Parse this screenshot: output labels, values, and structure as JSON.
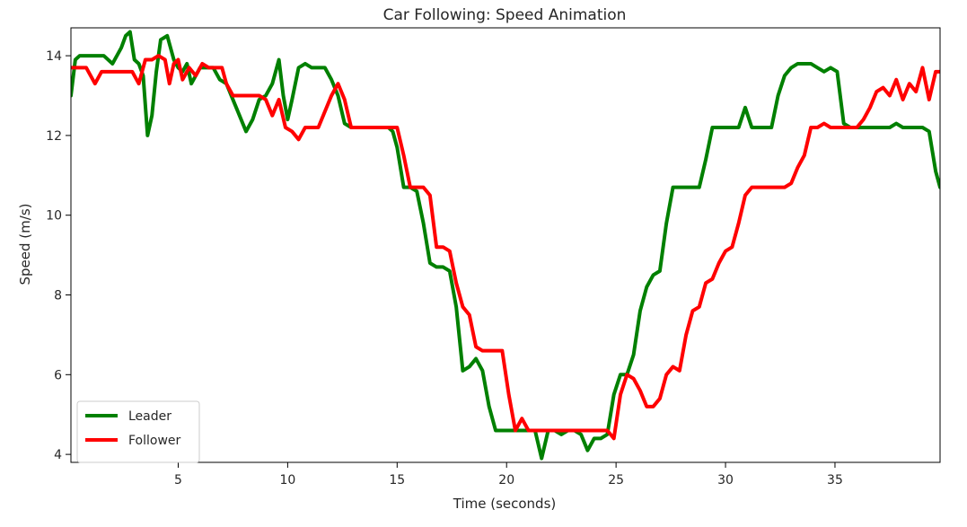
{
  "chart_data": {
    "type": "line",
    "title": "Car Following: Speed Animation",
    "xlabel": "Time (seconds)",
    "ylabel": "Speed (m/s)",
    "xlim": [
      0.1,
      39.8
    ],
    "ylim": [
      3.8,
      14.7
    ],
    "xticks": [
      5,
      10,
      15,
      20,
      25,
      30,
      35
    ],
    "yticks": [
      4,
      6,
      8,
      10,
      12,
      14
    ],
    "grid": false,
    "legend_position": "lower-left",
    "series": [
      {
        "name": "Leader",
        "color": "#008000",
        "x": [
          0.1,
          0.3,
          0.5,
          0.8,
          1.2,
          1.6,
          2.0,
          2.2,
          2.4,
          2.6,
          2.8,
          3.0,
          3.2,
          3.4,
          3.6,
          3.8,
          4.0,
          4.2,
          4.5,
          4.8,
          5.0,
          5.2,
          5.4,
          5.6,
          5.8,
          6.0,
          6.3,
          6.6,
          6.9,
          7.2,
          7.5,
          7.8,
          8.1,
          8.4,
          8.7,
          9.0,
          9.3,
          9.6,
          9.8,
          10.0,
          10.2,
          10.5,
          10.8,
          11.1,
          11.4,
          11.7,
          12.0,
          12.3,
          12.6,
          12.9,
          13.2,
          13.5,
          13.8,
          14.1,
          14.4,
          14.6,
          14.8,
          15.0,
          15.3,
          15.6,
          15.9,
          16.2,
          16.5,
          16.8,
          17.1,
          17.4,
          17.7,
          18.0,
          18.3,
          18.6,
          18.9,
          19.2,
          19.5,
          19.8,
          20.1,
          20.4,
          20.7,
          21.0,
          21.3,
          21.6,
          21.9,
          22.2,
          22.5,
          22.8,
          23.1,
          23.4,
          23.7,
          24.0,
          24.3,
          24.6,
          24.9,
          25.2,
          25.5,
          25.8,
          26.1,
          26.4,
          26.7,
          27.0,
          27.3,
          27.6,
          27.9,
          28.2,
          28.5,
          28.8,
          29.1,
          29.4,
          29.7,
          30.0,
          30.3,
          30.6,
          30.9,
          31.2,
          31.5,
          31.8,
          32.1,
          32.4,
          32.7,
          33.0,
          33.3,
          33.6,
          33.9,
          34.2,
          34.5,
          34.8,
          35.1,
          35.4,
          35.7,
          36.0,
          36.3,
          36.6,
          36.9,
          37.2,
          37.5,
          37.8,
          38.1,
          38.4,
          38.7,
          39.0,
          39.3,
          39.6,
          39.8
        ],
        "y": [
          13.0,
          13.9,
          14.0,
          14.0,
          14.0,
          14.0,
          13.8,
          14.0,
          14.2,
          14.5,
          14.6,
          13.9,
          13.8,
          13.5,
          12.0,
          12.5,
          13.6,
          14.4,
          14.5,
          13.9,
          13.7,
          13.6,
          13.8,
          13.3,
          13.5,
          13.7,
          13.7,
          13.7,
          13.4,
          13.3,
          12.9,
          12.5,
          12.1,
          12.4,
          12.9,
          13.0,
          13.3,
          13.9,
          13.0,
          12.4,
          12.9,
          13.7,
          13.8,
          13.7,
          13.7,
          13.7,
          13.4,
          13.0,
          12.3,
          12.2,
          12.2,
          12.2,
          12.2,
          12.2,
          12.2,
          12.2,
          12.1,
          11.7,
          10.7,
          10.7,
          10.6,
          9.8,
          8.8,
          8.7,
          8.7,
          8.6,
          7.7,
          6.1,
          6.2,
          6.4,
          6.1,
          5.2,
          4.6,
          4.6,
          4.6,
          4.6,
          4.6,
          4.6,
          4.6,
          3.9,
          4.6,
          4.6,
          4.5,
          4.6,
          4.6,
          4.5,
          4.1,
          4.4,
          4.4,
          4.5,
          5.5,
          6.0,
          6.0,
          6.5,
          7.6,
          8.2,
          8.5,
          8.6,
          9.8,
          10.7,
          10.7,
          10.7,
          10.7,
          10.7,
          11.4,
          12.2,
          12.2,
          12.2,
          12.2,
          12.2,
          12.7,
          12.2,
          12.2,
          12.2,
          12.2,
          13.0,
          13.5,
          13.7,
          13.8,
          13.8,
          13.8,
          13.7,
          13.6,
          13.7,
          13.6,
          12.3,
          12.2,
          12.2,
          12.2,
          12.2,
          12.2,
          12.2,
          12.2,
          12.3,
          12.2,
          12.2,
          12.2,
          12.2,
          12.1,
          11.1,
          10.7
        ]
      },
      {
        "name": "Follower",
        "color": "#ff0000",
        "x": [
          0.1,
          0.4,
          0.8,
          1.2,
          1.5,
          1.8,
          2.0,
          2.3,
          2.6,
          2.9,
          3.2,
          3.5,
          3.8,
          4.1,
          4.4,
          4.6,
          4.8,
          5.0,
          5.2,
          5.5,
          5.8,
          6.1,
          6.4,
          6.7,
          7.0,
          7.2,
          7.5,
          7.8,
          8.1,
          8.4,
          8.7,
          9.0,
          9.3,
          9.6,
          9.9,
          10.2,
          10.5,
          10.8,
          11.1,
          11.4,
          11.7,
          12.0,
          12.3,
          12.6,
          12.9,
          13.2,
          13.5,
          13.8,
          14.1,
          14.4,
          14.7,
          15.0,
          15.3,
          15.6,
          15.9,
          16.2,
          16.5,
          16.8,
          17.1,
          17.4,
          17.7,
          18.0,
          18.3,
          18.6,
          18.9,
          19.2,
          19.5,
          19.8,
          20.1,
          20.4,
          20.7,
          21.0,
          21.3,
          21.6,
          21.9,
          22.2,
          22.5,
          22.8,
          23.1,
          23.4,
          23.7,
          24.0,
          24.3,
          24.6,
          24.9,
          25.2,
          25.5,
          25.8,
          26.1,
          26.4,
          26.7,
          27.0,
          27.3,
          27.6,
          27.9,
          28.2,
          28.5,
          28.8,
          29.1,
          29.4,
          29.7,
          30.0,
          30.3,
          30.6,
          30.9,
          31.2,
          31.5,
          31.8,
          32.1,
          32.4,
          32.7,
          33.0,
          33.3,
          33.6,
          33.9,
          34.2,
          34.5,
          34.8,
          35.1,
          35.4,
          35.7,
          36.0,
          36.3,
          36.6,
          36.9,
          37.2,
          37.5,
          37.8,
          38.1,
          38.4,
          38.7,
          39.0,
          39.3,
          39.6,
          39.8
        ],
        "y": [
          13.7,
          13.7,
          13.7,
          13.3,
          13.6,
          13.6,
          13.6,
          13.6,
          13.6,
          13.6,
          13.3,
          13.9,
          13.9,
          14.0,
          13.9,
          13.3,
          13.8,
          13.9,
          13.4,
          13.7,
          13.5,
          13.8,
          13.7,
          13.7,
          13.7,
          13.3,
          13.0,
          13.0,
          13.0,
          13.0,
          13.0,
          12.9,
          12.5,
          12.9,
          12.2,
          12.1,
          11.9,
          12.2,
          12.2,
          12.2,
          12.6,
          13.0,
          13.3,
          12.9,
          12.2,
          12.2,
          12.2,
          12.2,
          12.2,
          12.2,
          12.2,
          12.2,
          11.5,
          10.7,
          10.7,
          10.7,
          10.5,
          9.2,
          9.2,
          9.1,
          8.3,
          7.7,
          7.5,
          6.7,
          6.6,
          6.6,
          6.6,
          6.6,
          5.5,
          4.6,
          4.9,
          4.6,
          4.6,
          4.6,
          4.6,
          4.6,
          4.6,
          4.6,
          4.6,
          4.6,
          4.6,
          4.6,
          4.6,
          4.6,
          4.4,
          5.5,
          6.0,
          5.9,
          5.6,
          5.2,
          5.2,
          5.4,
          6.0,
          6.2,
          6.1,
          7.0,
          7.6,
          7.7,
          8.3,
          8.4,
          8.8,
          9.1,
          9.2,
          9.8,
          10.5,
          10.7,
          10.7,
          10.7,
          10.7,
          10.7,
          10.7,
          10.8,
          11.2,
          11.5,
          12.2,
          12.2,
          12.3,
          12.2,
          12.2,
          12.2,
          12.2,
          12.2,
          12.4,
          12.7,
          13.1,
          13.2,
          13.0,
          13.4,
          12.9,
          13.3,
          13.1,
          13.7,
          12.9,
          13.6,
          13.6
        ]
      }
    ]
  }
}
